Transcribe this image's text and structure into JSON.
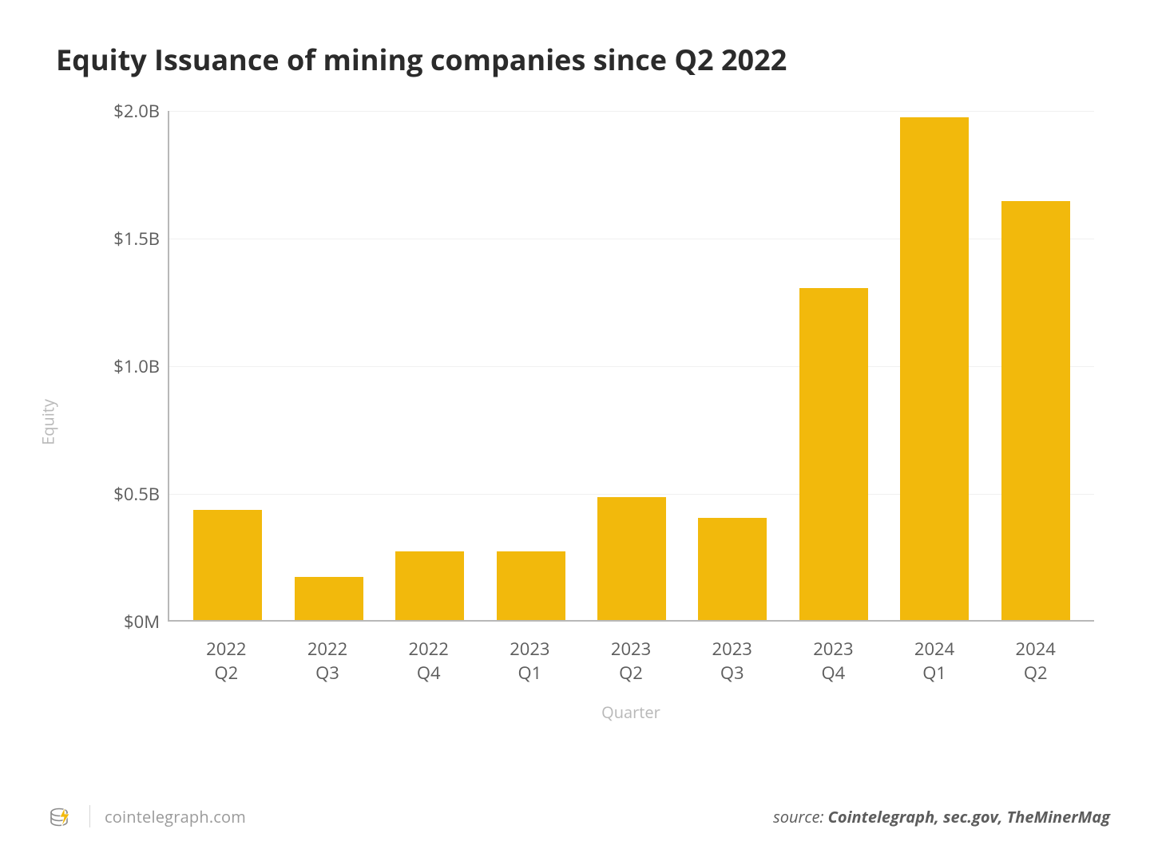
{
  "title": "Equity Issuance of mining companies since Q2 2022",
  "chart": {
    "type": "bar",
    "ylabel": "Equity",
    "xlabel": "Quarter",
    "ymin": 0,
    "ymax": 2.0,
    "yticks": [
      {
        "value": 0.0,
        "label": "$0M"
      },
      {
        "value": 0.5,
        "label": "$0.5B"
      },
      {
        "value": 1.0,
        "label": "$1.0B"
      },
      {
        "value": 1.5,
        "label": "$1.5B"
      },
      {
        "value": 2.0,
        "label": "$2.0B"
      }
    ],
    "categories": [
      {
        "year": "2022",
        "q": "Q2"
      },
      {
        "year": "2022",
        "q": "Q3"
      },
      {
        "year": "2022",
        "q": "Q4"
      },
      {
        "year": "2023",
        "q": "Q1"
      },
      {
        "year": "2023",
        "q": "Q2"
      },
      {
        "year": "2023",
        "q": "Q3"
      },
      {
        "year": "2023",
        "q": "Q4"
      },
      {
        "year": "2024",
        "q": "Q1"
      },
      {
        "year": "2024",
        "q": "Q2"
      }
    ],
    "values": [
      0.43,
      0.17,
      0.27,
      0.27,
      0.48,
      0.4,
      1.3,
      1.97,
      1.64
    ],
    "bar_color": "#f2b90c",
    "bar_width_ratio": 0.68,
    "background_color": "#ffffff",
    "grid_color": "#f0f0f0",
    "axis_color": "#b8b8b8",
    "tick_label_color": "#5c5c5c",
    "label_color": "#b8b8b8",
    "title_color": "#2b2b2b",
    "title_fontsize": 36,
    "tick_fontsize": 22,
    "label_fontsize": 20
  },
  "footer": {
    "site": "cointelegraph.com",
    "source_prefix": "source: ",
    "source_bold": "Cointelegraph, sec.gov, TheMinerMag",
    "logo_colors": {
      "coin": "#8a8a8a",
      "bolt": "#f2b90c"
    }
  }
}
